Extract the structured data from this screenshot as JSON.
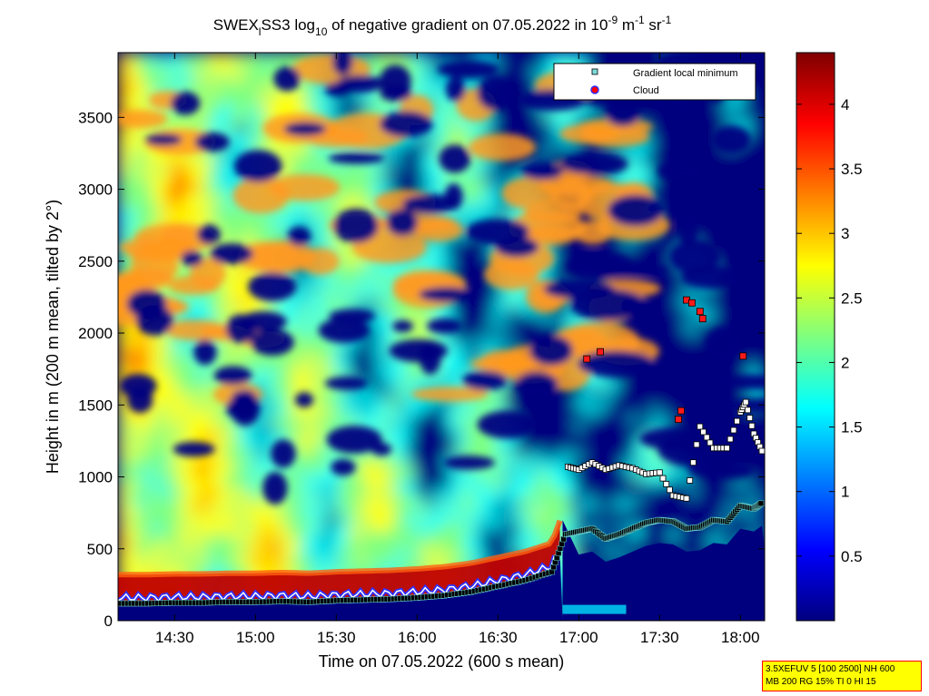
{
  "chart_data": {
    "type": "heatmap",
    "title": {
      "prefix": "SWEX",
      "prefix_sub": "l",
      "middle": "SS3 log",
      "log_sub": "10",
      "text": " of negative gradient on 07.05.2022 in 10",
      "exp1": "-9",
      "unit_a": " m",
      "exp2": "-1",
      "unit_b": " sr",
      "exp3": "-1"
    },
    "xlabel": "Time on 07.05.2022 (600 s mean)",
    "ylabel": "Height in m (200 m mean, tilted by 2°)",
    "x_range": [
      "14:09",
      "18:09"
    ],
    "y_range": [
      0,
      3950
    ],
    "x_ticks": [
      "14:30",
      "15:00",
      "15:30",
      "16:00",
      "16:30",
      "17:00",
      "17:30",
      "18:00"
    ],
    "y_ticks": [
      0,
      500,
      1000,
      1500,
      2000,
      2500,
      3000,
      3500
    ],
    "colorbar": {
      "range": [
        0,
        4.4
      ],
      "ticks": [
        0.5,
        1,
        1.5,
        2,
        2.5,
        3,
        3.5,
        4
      ],
      "colors": [
        "#00007f",
        "#0000ff",
        "#007fff",
        "#00ffff",
        "#7fff7f",
        "#ffff00",
        "#ff7f00",
        "#ff0000",
        "#7f0000"
      ]
    },
    "legend": {
      "position": "top-right",
      "entries": [
        {
          "label": "Gradient local minimum",
          "marker": "square",
          "color": "#7fdcdc"
        },
        {
          "label": "Cloud",
          "marker": "circle",
          "color": "#ff0000"
        }
      ]
    },
    "gradient_local_minimum": {
      "lower_layer": {
        "x": [
          "14:10",
          "14:20",
          "14:30",
          "14:40",
          "14:50",
          "15:00",
          "15:10",
          "15:20",
          "15:30",
          "15:40",
          "15:50",
          "16:00",
          "16:10",
          "16:20",
          "16:30",
          "16:40",
          "16:50",
          "16:55",
          "17:00",
          "17:05",
          "17:10",
          "17:15",
          "17:20",
          "17:25",
          "17:30",
          "17:35",
          "17:40",
          "17:45",
          "17:50",
          "17:55",
          "18:00",
          "18:05",
          "18:08"
        ],
        "y": [
          120,
          120,
          125,
          125,
          130,
          130,
          135,
          130,
          140,
          145,
          150,
          160,
          175,
          200,
          240,
          280,
          340,
          600,
          620,
          640,
          570,
          600,
          640,
          680,
          700,
          690,
          640,
          650,
          700,
          690,
          800,
          780,
          820
        ]
      },
      "upper_layer": {
        "x": [
          "16:56",
          "17:00",
          "17:05",
          "17:10",
          "17:15",
          "17:20",
          "17:25",
          "17:30",
          "17:35",
          "17:40",
          "17:45",
          "17:50",
          "17:55",
          "18:00",
          "18:02",
          "18:05",
          "18:08"
        ],
        "y": [
          1070,
          1050,
          1100,
          1050,
          1080,
          1060,
          1020,
          1030,
          870,
          850,
          1350,
          1200,
          1200,
          1450,
          1520,
          1300,
          1180
        ]
      }
    },
    "cloud": {
      "x": [
        "17:03",
        "17:08",
        "17:37",
        "17:38",
        "17:40",
        "17:42",
        "17:45",
        "17:46",
        "18:01"
      ],
      "y": [
        1820,
        1870,
        1400,
        1460,
        2230,
        2210,
        2150,
        2100,
        1840
      ]
    }
  },
  "info_box": {
    "line1": "3.5XEFUV 5 [100 2500] NH 600",
    "line2": "MB 200 RG 15% TI 0 HI 15"
  }
}
